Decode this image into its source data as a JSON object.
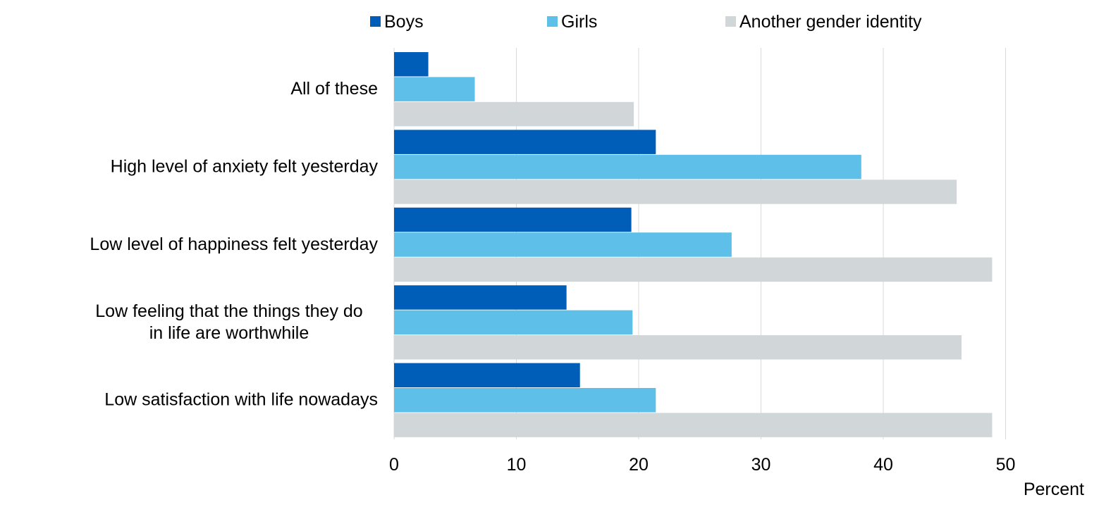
{
  "chart_data": {
    "type": "bar",
    "orientation": "horizontal",
    "categories": [
      [
        "All of these"
      ],
      [
        "High level of anxiety felt yesterday"
      ],
      [
        "Low level of happiness felt yesterday"
      ],
      [
        "Low feeling that the things they do",
        "in life are worthwhile"
      ],
      [
        "Low satisfaction with life nowadays"
      ]
    ],
    "series": [
      {
        "name": "Boys",
        "color": "#005EB8",
        "values": [
          2.8,
          21.4,
          19.4,
          14.1,
          15.2
        ]
      },
      {
        "name": "Girls",
        "color": "#5EC0E8",
        "values": [
          6.6,
          38.2,
          27.6,
          19.5,
          21.4
        ]
      },
      {
        "name": "Another gender identity",
        "color": "#D1D7D8",
        "values": [
          19.6,
          46.0,
          48.9,
          46.4,
          48.9
        ]
      }
    ],
    "xlabel": "Percent",
    "ylabel": "",
    "xlim": [
      0,
      50
    ],
    "xticks": [
      0,
      10,
      20,
      30,
      40,
      50
    ],
    "grid": true,
    "legend_position": "top"
  }
}
